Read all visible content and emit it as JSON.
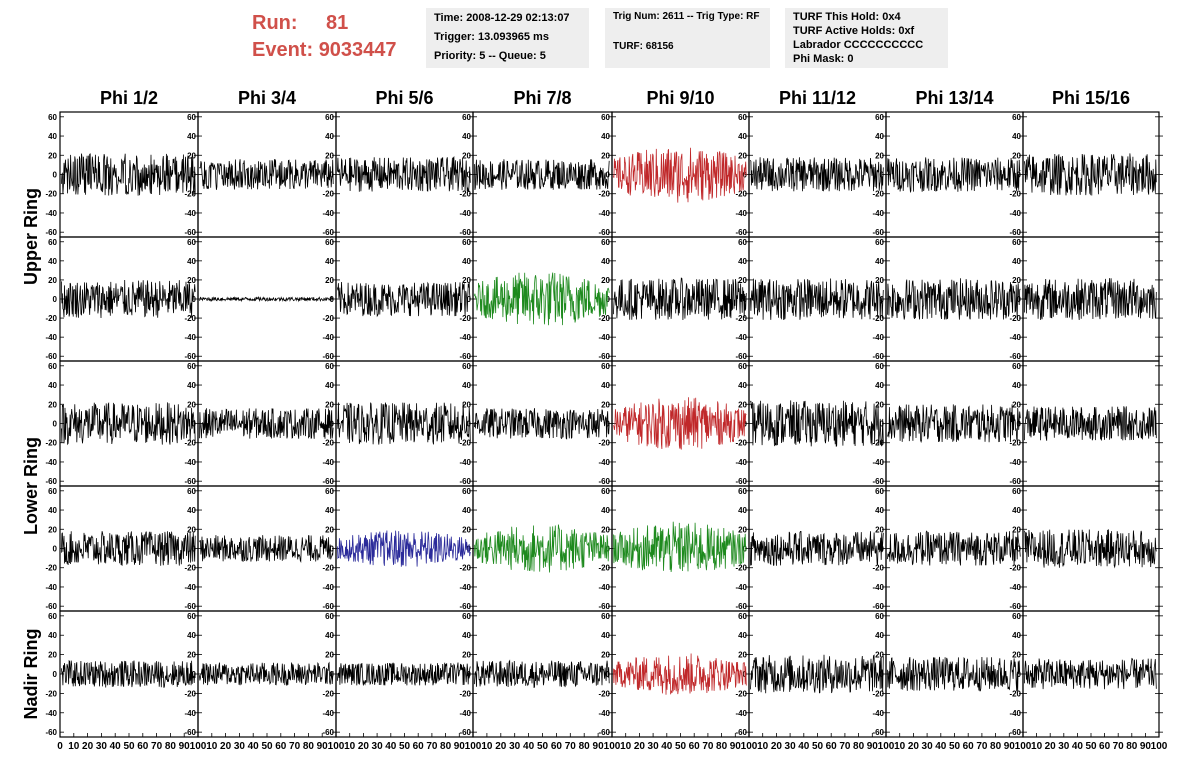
{
  "header": {
    "run_label": "Run:",
    "run_value": "81",
    "event_label": "Event:",
    "event_value": "9033447"
  },
  "info_panels": {
    "time": "Time: 2008-12-29 02:13:07",
    "trigger": "Trigger: 13.093965 ms",
    "priority": "Priority: 5 -- Queue: 5",
    "trig_num": "Trig Num: 2611 -- Trig Type: RF",
    "turf": "TURF: 68156",
    "turf_hold": "TURF This Hold: 0x4",
    "turf_active": "TURF Active Holds: 0xf",
    "labrador": "Labrador CCCCCCCCCC",
    "phi_mask": "Phi Mask: 0"
  },
  "grid": {
    "columns": [
      "Phi 1/2",
      "Phi 3/4",
      "Phi 5/6",
      "Phi 7/8",
      "Phi 9/10",
      "Phi 11/12",
      "Phi 13/14",
      "Phi 15/16"
    ],
    "ring_labels": [
      "Upper Ring",
      "Lower Ring",
      "Nadir Ring"
    ],
    "y_ticks": [
      60,
      40,
      20,
      0,
      -20,
      -40,
      -60
    ],
    "x_ticks": [
      0,
      10,
      20,
      30,
      40,
      50,
      60,
      70,
      80,
      90,
      100
    ],
    "y_range": [
      -65,
      65
    ],
    "x_range": [
      0,
      100
    ]
  },
  "colors": {
    "header_red": "#d0504a",
    "trace_default": "#000000",
    "trace_red": "#c0282a",
    "trace_green": "#1e8a1e",
    "trace_blue": "#2a2a9a"
  },
  "chart_data": {
    "type": "line",
    "title": "",
    "xlabel": "",
    "ylabel": "",
    "xlim": [
      0,
      100
    ],
    "ylim": [
      -65,
      65
    ],
    "panels": [
      {
        "row": 0,
        "col": 0,
        "color": "trace_default",
        "amplitude": 22,
        "offset": 0
      },
      {
        "row": 0,
        "col": 1,
        "color": "trace_default",
        "amplitude": 16,
        "offset": 0
      },
      {
        "row": 0,
        "col": 2,
        "color": "trace_default",
        "amplitude": 18,
        "offset": 0
      },
      {
        "row": 0,
        "col": 3,
        "color": "trace_default",
        "amplitude": 16,
        "offset": 0
      },
      {
        "row": 0,
        "col": 4,
        "color": "trace_red",
        "amplitude": 30,
        "offset": 0
      },
      {
        "row": 0,
        "col": 5,
        "color": "trace_default",
        "amplitude": 18,
        "offset": 0
      },
      {
        "row": 0,
        "col": 6,
        "color": "trace_default",
        "amplitude": 18,
        "offset": 0
      },
      {
        "row": 0,
        "col": 7,
        "color": "trace_default",
        "amplitude": 22,
        "offset": 0
      },
      {
        "row": 1,
        "col": 0,
        "color": "trace_default",
        "amplitude": 20,
        "offset": 0
      },
      {
        "row": 1,
        "col": 1,
        "color": "trace_default",
        "amplitude": 2,
        "offset": 0
      },
      {
        "row": 1,
        "col": 2,
        "color": "trace_default",
        "amplitude": 18,
        "offset": 0
      },
      {
        "row": 1,
        "col": 3,
        "color": "trace_green",
        "amplitude": 30,
        "offset": 0
      },
      {
        "row": 1,
        "col": 4,
        "color": "trace_default",
        "amplitude": 22,
        "offset": 0
      },
      {
        "row": 1,
        "col": 5,
        "color": "trace_default",
        "amplitude": 22,
        "offset": 0
      },
      {
        "row": 1,
        "col": 6,
        "color": "trace_default",
        "amplitude": 22,
        "offset": 0
      },
      {
        "row": 1,
        "col": 7,
        "color": "trace_default",
        "amplitude": 22,
        "offset": 0
      },
      {
        "row": 2,
        "col": 0,
        "color": "trace_default",
        "amplitude": 22,
        "offset": 0
      },
      {
        "row": 2,
        "col": 1,
        "color": "trace_default",
        "amplitude": 16,
        "offset": 0
      },
      {
        "row": 2,
        "col": 2,
        "color": "trace_default",
        "amplitude": 22,
        "offset": 0
      },
      {
        "row": 2,
        "col": 3,
        "color": "trace_default",
        "amplitude": 16,
        "offset": 0
      },
      {
        "row": 2,
        "col": 4,
        "color": "trace_red",
        "amplitude": 28,
        "offset": 0
      },
      {
        "row": 2,
        "col": 5,
        "color": "trace_default",
        "amplitude": 24,
        "offset": 0
      },
      {
        "row": 2,
        "col": 6,
        "color": "trace_default",
        "amplitude": 20,
        "offset": 0
      },
      {
        "row": 2,
        "col": 7,
        "color": "trace_default",
        "amplitude": 18,
        "offset": 0
      },
      {
        "row": 3,
        "col": 0,
        "color": "trace_default",
        "amplitude": 18,
        "offset": 0
      },
      {
        "row": 3,
        "col": 1,
        "color": "trace_default",
        "amplitude": 14,
        "offset": 0
      },
      {
        "row": 3,
        "col": 2,
        "color": "trace_blue",
        "amplitude": 20,
        "offset": 0
      },
      {
        "row": 3,
        "col": 3,
        "color": "trace_green",
        "amplitude": 26,
        "offset": 0
      },
      {
        "row": 3,
        "col": 4,
        "color": "trace_green",
        "amplitude": 28,
        "offset": 0
      },
      {
        "row": 3,
        "col": 5,
        "color": "trace_default",
        "amplitude": 18,
        "offset": 0
      },
      {
        "row": 3,
        "col": 6,
        "color": "trace_default",
        "amplitude": 18,
        "offset": 0
      },
      {
        "row": 3,
        "col": 7,
        "color": "trace_default",
        "amplitude": 20,
        "offset": 0
      },
      {
        "row": 4,
        "col": 0,
        "color": "trace_default",
        "amplitude": 14,
        "offset": 0
      },
      {
        "row": 4,
        "col": 1,
        "color": "trace_default",
        "amplitude": 12,
        "offset": 0
      },
      {
        "row": 4,
        "col": 2,
        "color": "trace_default",
        "amplitude": 12,
        "offset": 0
      },
      {
        "row": 4,
        "col": 3,
        "color": "trace_default",
        "amplitude": 14,
        "offset": 0
      },
      {
        "row": 4,
        "col": 4,
        "color": "trace_red",
        "amplitude": 22,
        "offset": 0
      },
      {
        "row": 4,
        "col": 5,
        "color": "trace_default",
        "amplitude": 20,
        "offset": 0
      },
      {
        "row": 4,
        "col": 6,
        "color": "trace_default",
        "amplitude": 18,
        "offset": 0
      },
      {
        "row": 4,
        "col": 7,
        "color": "trace_default",
        "amplitude": 16,
        "offset": 0
      }
    ]
  }
}
